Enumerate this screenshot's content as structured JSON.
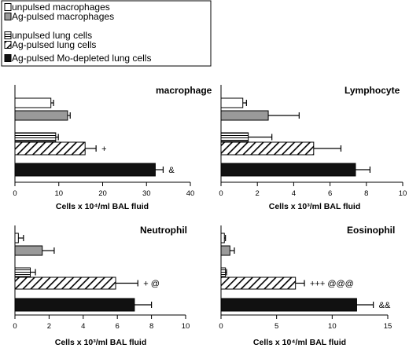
{
  "legend": {
    "entries": [
      {
        "label": "unpulsed macrophages",
        "pattern": "white"
      },
      {
        "label": "Ag-pulsed macrophages",
        "pattern": "gray"
      },
      {
        "label": "unpulsed lung cells",
        "pattern": "hlines"
      },
      {
        "label": "Ag-pulsed lung cells",
        "pattern": "diag"
      },
      {
        "label": "Ag-pulsed Mo-depleted lung cells",
        "pattern": "black"
      }
    ]
  },
  "colors": {
    "gray_fill": "#9a9a9a",
    "black_fill": "#111111",
    "axis": "#000000"
  },
  "chart_data": [
    {
      "type": "bar",
      "orientation": "horizontal",
      "title": "macrophage",
      "xlabel": "Cells x 10⁴/ml BAL fluid",
      "xlim": [
        0,
        40
      ],
      "xticks": [
        "0",
        "10",
        "20",
        "30",
        "40"
      ],
      "values": [
        8.2,
        12.0,
        9.3,
        16.0,
        32.0
      ],
      "errors": [
        0.6,
        0.6,
        0.6,
        2.5,
        1.8
      ],
      "annotations": [
        "",
        "",
        "",
        "+",
        "&"
      ]
    },
    {
      "type": "bar",
      "orientation": "horizontal",
      "title": "Lymphocyte",
      "xlabel": "Cells x 10³/ml BAL fluid",
      "xlim": [
        0,
        10
      ],
      "xticks": [
        "0",
        "2",
        "4",
        "6",
        "8",
        "10"
      ],
      "values": [
        1.2,
        2.6,
        1.5,
        5.1,
        7.4
      ],
      "errors": [
        0.2,
        1.7,
        1.3,
        1.5,
        0.8
      ],
      "annotations": [
        "",
        "",
        "",
        "",
        ""
      ]
    },
    {
      "type": "bar",
      "orientation": "horizontal",
      "title": "Neutrophil",
      "xlabel": "Cells x 10³/ml BAL fluid",
      "xlim": [
        0,
        10
      ],
      "xticks": [
        "0",
        "2",
        "4",
        "6",
        "8",
        "10"
      ],
      "values": [
        0.2,
        1.6,
        0.9,
        5.9,
        7.0
      ],
      "errors": [
        0.3,
        0.7,
        0.3,
        1.3,
        1.0
      ],
      "annotations": [
        "",
        "",
        "",
        "+ @",
        ""
      ]
    },
    {
      "type": "bar",
      "orientation": "horizontal",
      "title": "Eosinophil",
      "xlabel": "Cells x 10⁴/ml BAL fluid",
      "xlim": [
        0,
        15
      ],
      "xticks": [
        "0",
        "5",
        "10",
        "15"
      ],
      "values": [
        0.3,
        0.8,
        0.4,
        6.7,
        12.2
      ],
      "errors": [
        0.1,
        0.4,
        0.1,
        0.8,
        1.5
      ],
      "annotations": [
        "",
        "",
        "",
        "+++ @@@",
        "&&"
      ]
    }
  ]
}
